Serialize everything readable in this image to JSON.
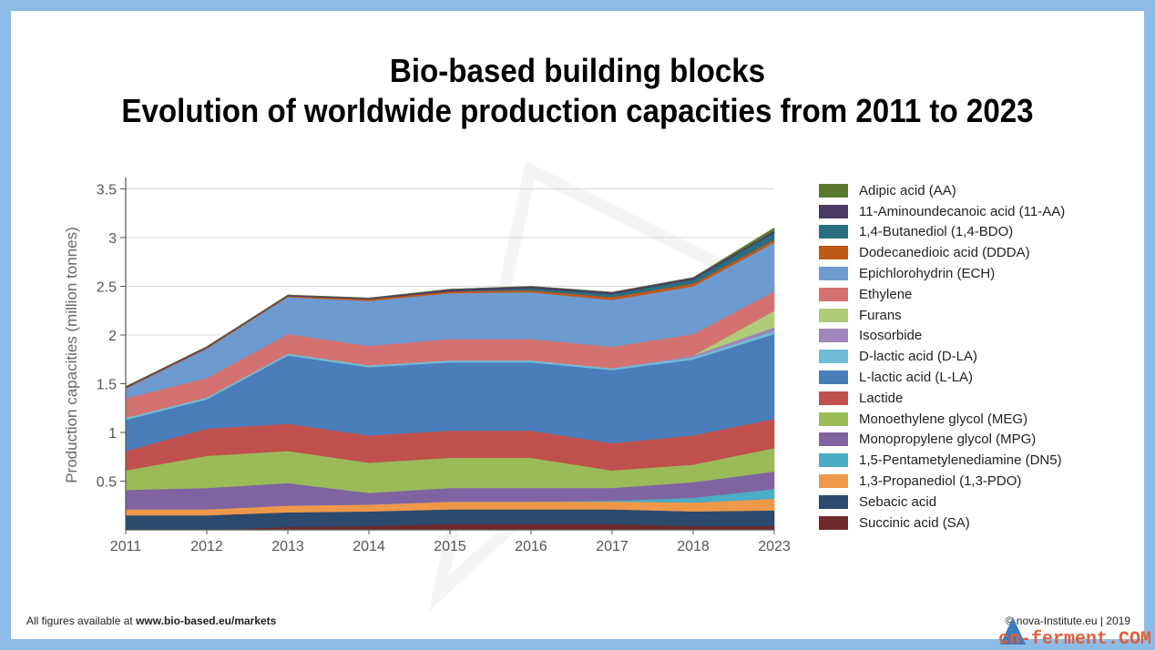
{
  "title_line1": "Bio-based building blocks",
  "title_line2": "Evolution of worldwide production capacities from 2011 to 2023",
  "footer": {
    "prefix": "All figures available at ",
    "link": "www.bio-based.eu/markets",
    "copyright": "© nova-Institute.eu | 2019"
  },
  "watermark": "cn-ferment.COM",
  "chart_data": {
    "type": "area",
    "stacked": true,
    "x": [
      "2011",
      "2012",
      "2013",
      "2014",
      "2015",
      "2016",
      "2017",
      "2018",
      "2023"
    ],
    "ylabel": "Production capacities (million tonnes)",
    "ylim": [
      0,
      3.6
    ],
    "yticks": [
      0.5,
      1,
      1.5,
      2,
      2.5,
      3,
      3.5
    ],
    "ytick_labels": [
      "0.5",
      "1",
      "1.5",
      "2",
      "2.5",
      "3",
      "3.5"
    ],
    "grid": true,
    "legend_position": "right",
    "series": [
      {
        "name": "Succinic acid (SA)",
        "color": "#6e2a2a",
        "values": [
          0.0,
          0.0,
          0.03,
          0.04,
          0.06,
          0.06,
          0.06,
          0.04,
          0.04
        ]
      },
      {
        "name": "Sebacic acid",
        "color": "#2b4a6e",
        "values": [
          0.15,
          0.15,
          0.15,
          0.15,
          0.15,
          0.15,
          0.15,
          0.15,
          0.16
        ]
      },
      {
        "name": "1,3-Propanediol (1,3-PDO)",
        "color": "#f0984a",
        "values": [
          0.06,
          0.06,
          0.07,
          0.07,
          0.08,
          0.08,
          0.08,
          0.09,
          0.12
        ]
      },
      {
        "name": "1,5-Pentametylenediamine (DN5)",
        "color": "#4bacc6",
        "values": [
          0.0,
          0.0,
          0.0,
          0.0,
          0.0,
          0.0,
          0.01,
          0.05,
          0.1
        ]
      },
      {
        "name": "Monopropylene glycol (MPG)",
        "color": "#8064a2",
        "values": [
          0.2,
          0.22,
          0.23,
          0.12,
          0.14,
          0.14,
          0.13,
          0.16,
          0.18
        ]
      },
      {
        "name": "Monoethylene glycol (MEG)",
        "color": "#9bbb59",
        "values": [
          0.2,
          0.33,
          0.33,
          0.31,
          0.31,
          0.31,
          0.18,
          0.18,
          0.24
        ]
      },
      {
        "name": "Lactide",
        "color": "#c0504d",
        "values": [
          0.2,
          0.28,
          0.28,
          0.28,
          0.28,
          0.28,
          0.28,
          0.3,
          0.3
        ]
      },
      {
        "name": "L-lactic acid (L-LA)",
        "color": "#4a7ebb",
        "values": [
          0.32,
          0.3,
          0.7,
          0.7,
          0.7,
          0.7,
          0.75,
          0.78,
          0.87
        ]
      },
      {
        "name": "D-lactic acid (D-LA)",
        "color": "#6fbcd6",
        "values": [
          0.02,
          0.02,
          0.02,
          0.02,
          0.02,
          0.02,
          0.02,
          0.02,
          0.03
        ]
      },
      {
        "name": "Isosorbide",
        "color": "#9e86bb",
        "values": [
          0.0,
          0.0,
          0.0,
          0.0,
          0.0,
          0.0,
          0.0,
          0.02,
          0.04
        ]
      },
      {
        "name": "Furans",
        "color": "#b0cc7a",
        "values": [
          0.0,
          0.0,
          0.0,
          0.0,
          0.0,
          0.0,
          0.0,
          0.0,
          0.17
        ]
      },
      {
        "name": "Ethylene",
        "color": "#d47272",
        "values": [
          0.2,
          0.2,
          0.2,
          0.2,
          0.22,
          0.22,
          0.22,
          0.22,
          0.2
        ]
      },
      {
        "name": "Epichlorohydrin (ECH)",
        "color": "#6e9bcf",
        "values": [
          0.1,
          0.3,
          0.38,
          0.46,
          0.47,
          0.48,
          0.48,
          0.49,
          0.5
        ]
      },
      {
        "name": "Dodecanedioic acid (DDDA)",
        "color": "#c0581a",
        "values": [
          0.01,
          0.01,
          0.01,
          0.02,
          0.02,
          0.02,
          0.03,
          0.03,
          0.03
        ]
      },
      {
        "name": "1,4-Butanediol (1,4-BDO)",
        "color": "#2a6f7f",
        "values": [
          0.0,
          0.0,
          0.0,
          0.0,
          0.0,
          0.02,
          0.03,
          0.04,
          0.07
        ]
      },
      {
        "name": "11-Aminoundecanoic acid (11-AA)",
        "color": "#4a3c63",
        "values": [
          0.01,
          0.01,
          0.01,
          0.01,
          0.02,
          0.02,
          0.02,
          0.02,
          0.02
        ]
      },
      {
        "name": "Adipic acid (AA)",
        "color": "#5a7a30",
        "values": [
          0.0,
          0.0,
          0.0,
          0.0,
          0.0,
          0.0,
          0.0,
          0.0,
          0.03
        ]
      }
    ]
  }
}
